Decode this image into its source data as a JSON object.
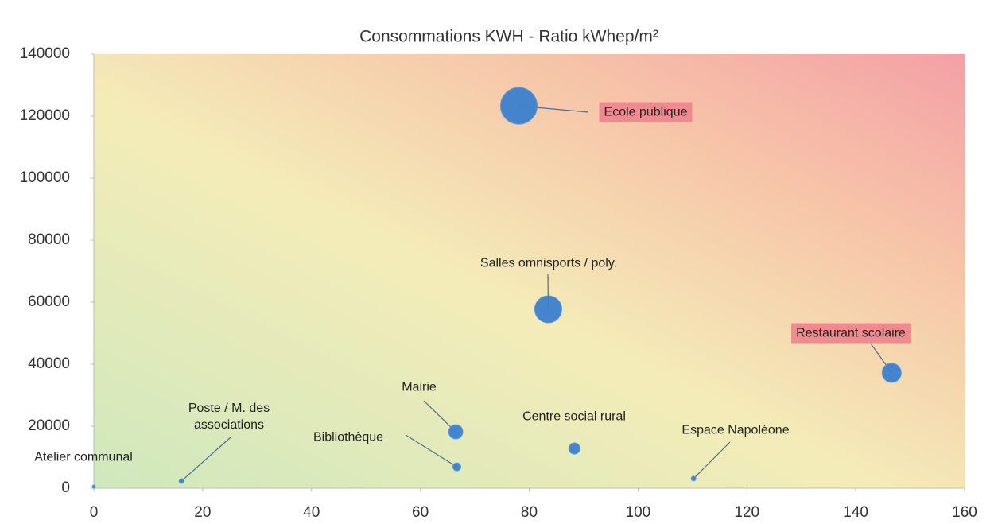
{
  "chart_data": {
    "type": "bubble",
    "title": "Consommations KWH - Ratio kWhep/m²",
    "labels": [
      "Atelier communal",
      "Poste / M. des associations",
      "Bibliothèque",
      "Mairie",
      "Salles omnisports / poly.",
      "Centre social rural",
      "Ecole publique",
      "Espace Napoléone",
      "Restaurant scolaire"
    ],
    "x": [
      0,
      16.1,
      66.7,
      66.5,
      83.5,
      88.3,
      78.1,
      110.2,
      146.6
    ],
    "values": [
      500,
      2300,
      6900,
      18200,
      57700,
      12800,
      123300,
      3100,
      37200
    ],
    "sizes": [
      4,
      9,
      25,
      80,
      290,
      50,
      530,
      9,
      145
    ],
    "highlighted": [
      false,
      false,
      false,
      false,
      false,
      false,
      true,
      false,
      true
    ],
    "color": "#3a7fcf",
    "highlight_color": "#f08a8f",
    "xlim": [
      0,
      160
    ],
    "xticks": [
      0,
      20,
      40,
      60,
      80,
      100,
      120,
      140,
      160
    ],
    "ylim": [
      0,
      140000
    ],
    "yticks": [
      0,
      20000,
      40000,
      60000,
      80000,
      100000,
      120000,
      140000
    ],
    "grid": false
  }
}
